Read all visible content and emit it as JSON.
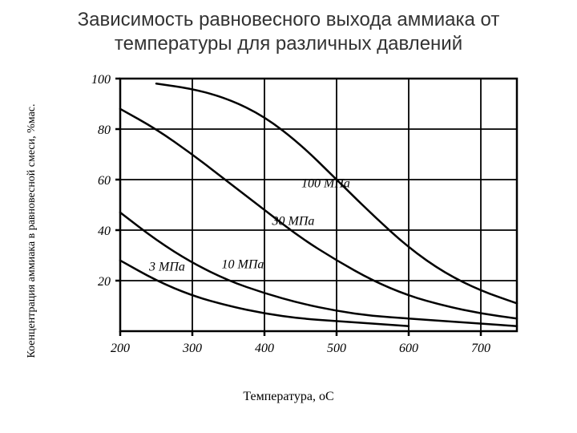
{
  "title": "Зависимость равновесного выхода аммиака от температуры для различных давлений",
  "chart": {
    "type": "line",
    "background_color": "#ffffff",
    "axis_color": "#000000",
    "grid_color": "#000000",
    "line_color": "#000000",
    "line_width": 2.5,
    "axis_width": 2.5,
    "grid_width": 1.8,
    "xlabel": "Температура, оС",
    "ylabel": "Коенцентрация аммиака в равновесной смеси, %мас.",
    "xlim": [
      200,
      750
    ],
    "ylim": [
      0,
      100
    ],
    "xticks": [
      200,
      300,
      400,
      500,
      600,
      700
    ],
    "yticks": [
      20,
      40,
      60,
      80,
      100
    ],
    "tick_font_size": 16,
    "tick_font_style": "italic",
    "label_font_size": 16,
    "series": [
      {
        "name": "3 МПа",
        "label": "3 МПа",
        "label_pos": {
          "x": 265,
          "y": 24
        },
        "points": [
          {
            "x": 200,
            "y": 28
          },
          {
            "x": 250,
            "y": 20
          },
          {
            "x": 300,
            "y": 14
          },
          {
            "x": 350,
            "y": 10
          },
          {
            "x": 400,
            "y": 7
          },
          {
            "x": 450,
            "y": 5
          },
          {
            "x": 500,
            "y": 4
          },
          {
            "x": 550,
            "y": 3
          },
          {
            "x": 600,
            "y": 2
          }
        ]
      },
      {
        "name": "10 МПа",
        "label": "10 МПа",
        "label_pos": {
          "x": 370,
          "y": 25
        },
        "points": [
          {
            "x": 200,
            "y": 47
          },
          {
            "x": 250,
            "y": 36
          },
          {
            "x": 300,
            "y": 27
          },
          {
            "x": 350,
            "y": 20
          },
          {
            "x": 400,
            "y": 15
          },
          {
            "x": 450,
            "y": 11
          },
          {
            "x": 500,
            "y": 8
          },
          {
            "x": 550,
            "y": 6
          },
          {
            "x": 600,
            "y": 5
          },
          {
            "x": 650,
            "y": 4
          },
          {
            "x": 700,
            "y": 3
          },
          {
            "x": 750,
            "y": 2
          }
        ]
      },
      {
        "name": "30 МПа",
        "label": "30 МПа",
        "label_pos": {
          "x": 440,
          "y": 42
        },
        "points": [
          {
            "x": 200,
            "y": 88
          },
          {
            "x": 250,
            "y": 80
          },
          {
            "x": 300,
            "y": 70
          },
          {
            "x": 350,
            "y": 59
          },
          {
            "x": 400,
            "y": 48
          },
          {
            "x": 450,
            "y": 37
          },
          {
            "x": 500,
            "y": 28
          },
          {
            "x": 550,
            "y": 20
          },
          {
            "x": 600,
            "y": 14
          },
          {
            "x": 650,
            "y": 10
          },
          {
            "x": 700,
            "y": 7
          },
          {
            "x": 750,
            "y": 5
          }
        ]
      },
      {
        "name": "100 МПа",
        "label": "100 МПа",
        "label_pos": {
          "x": 485,
          "y": 57
        },
        "points": [
          {
            "x": 250,
            "y": 98
          },
          {
            "x": 300,
            "y": 96
          },
          {
            "x": 350,
            "y": 92
          },
          {
            "x": 400,
            "y": 85
          },
          {
            "x": 450,
            "y": 74
          },
          {
            "x": 500,
            "y": 60
          },
          {
            "x": 550,
            "y": 46
          },
          {
            "x": 600,
            "y": 33
          },
          {
            "x": 650,
            "y": 23
          },
          {
            "x": 700,
            "y": 16
          },
          {
            "x": 750,
            "y": 11
          }
        ]
      }
    ]
  }
}
